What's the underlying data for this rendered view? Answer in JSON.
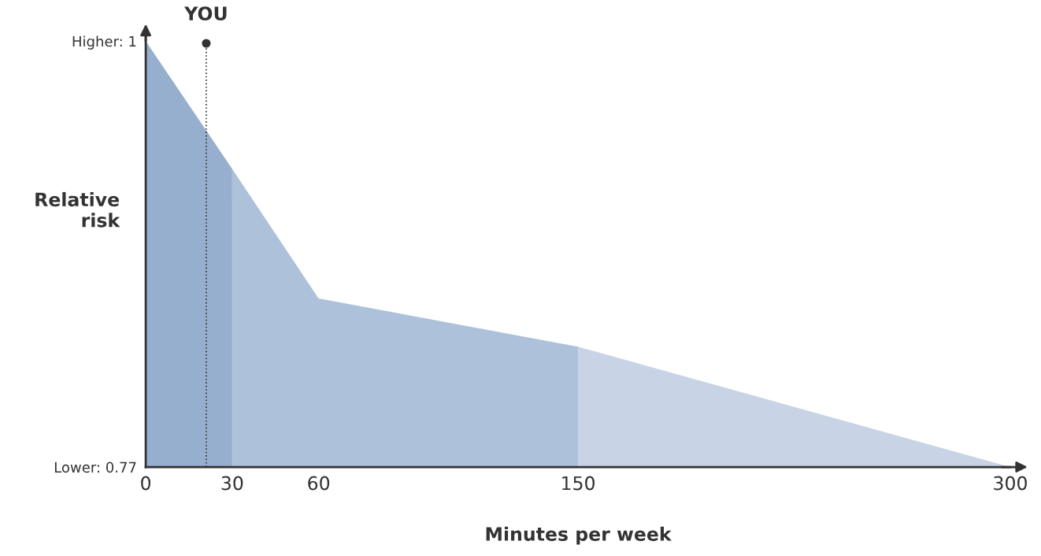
{
  "chart_data": {
    "type": "area",
    "xlabel": "Minutes per week",
    "ylabel": "Relative\nrisk",
    "series": [
      {
        "color": "#97afce",
        "x": [
          0,
          30
        ],
        "values": [
          1,
          0.931
        ]
      },
      {
        "color": "#adc1db",
        "x": [
          30,
          60,
          150
        ],
        "values": [
          0.931,
          0.861,
          0.835
        ]
      },
      {
        "color": "#c8d4e6",
        "x": [
          150,
          300
        ],
        "values": [
          0.835,
          0.77
        ]
      }
    ],
    "xlim": [
      0,
      300
    ],
    "xticks": [
      0,
      30,
      60,
      150,
      300
    ],
    "ylim": [
      0.77,
      1
    ],
    "yticks": [
      {
        "value": 0.77,
        "label": "Lower: 0.77"
      },
      {
        "value": 1,
        "label": "Higher: 1"
      }
    ],
    "ref_lines": [
      {
        "axis": "x",
        "value": 21,
        "label": "YOU",
        "color": "#333333",
        "line_style": "dotted"
      }
    ],
    "grid": false,
    "legend": false
  }
}
